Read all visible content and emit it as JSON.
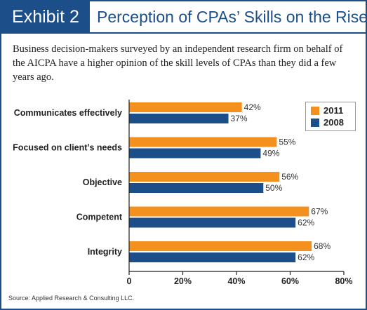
{
  "header": {
    "exhibit_label": "Exhibit 2",
    "title": "Perception of CPAs’ Skills on the Rise"
  },
  "subtitle": "Business decision-makers surveyed by an independent research firm on behalf of the AICPA have a higher opinion of the skill levels of CPAs than they did a few years ago.",
  "source": "Source: Applied Research & Consulting LLC.",
  "colors": {
    "brand": "#1c4f8a",
    "series_2011": "#f4901e",
    "series_2008": "#1c4f8a"
  },
  "chart_data": {
    "type": "bar",
    "orientation": "horizontal",
    "categories": [
      "Communicates effectively",
      "Focused on client’s needs",
      "Objective",
      "Competent",
      "Integrity"
    ],
    "series": [
      {
        "name": "2011",
        "values": [
          42,
          55,
          56,
          67,
          68
        ],
        "labels": [
          "42%",
          "55%",
          "56%",
          "67%",
          "68%"
        ]
      },
      {
        "name": "2008",
        "values": [
          37,
          49,
          50,
          62,
          62
        ],
        "labels": [
          "37%",
          "49%",
          "50%",
          "62%",
          "62%"
        ]
      }
    ],
    "xlim": [
      0,
      80
    ],
    "xticks": [
      0,
      20,
      40,
      60,
      80
    ],
    "xtick_labels": [
      "0",
      "20%",
      "40%",
      "60%",
      "80%"
    ],
    "grid": false,
    "legend_placement": "top-right"
  }
}
